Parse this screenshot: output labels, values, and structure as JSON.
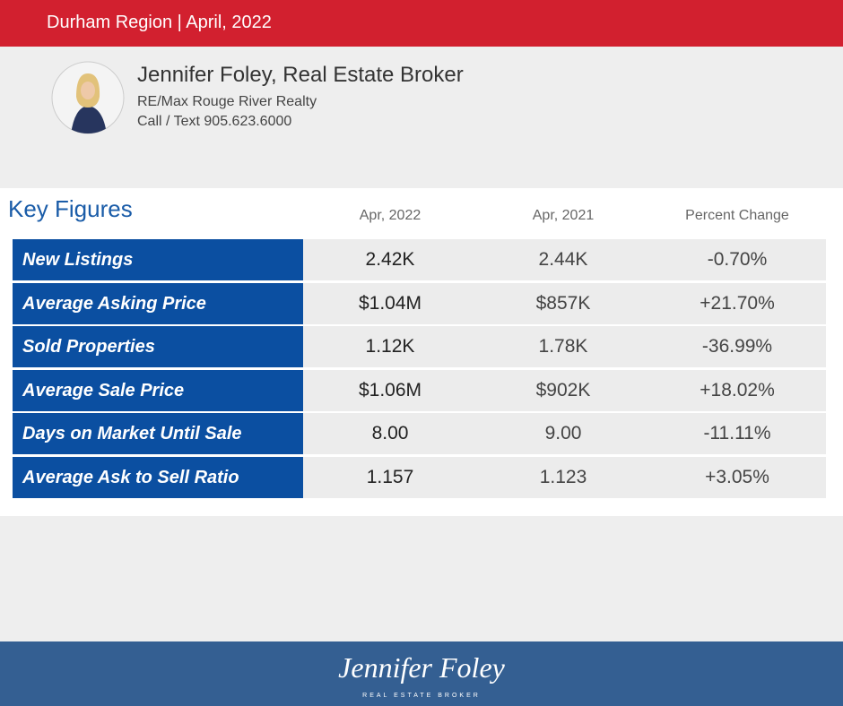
{
  "header": {
    "title": "Durham Region | April, 2022"
  },
  "agent": {
    "name": "Jennifer Foley, Real Estate Broker",
    "company": "RE/Max Rouge River Realty",
    "phone": "Call / Text 905.623.6000"
  },
  "table": {
    "title": "Key Figures",
    "columns": [
      "Apr, 2022",
      "Apr, 2021",
      "Percent Change"
    ],
    "rows": [
      [
        "New Listings",
        "2.42K",
        "2.44K",
        "-0.70%"
      ],
      [
        "Average Asking Price",
        "$1.04M",
        "$857K",
        "+21.70%"
      ],
      [
        "Sold Properties",
        "1.12K",
        "1.78K",
        "-36.99%"
      ],
      [
        "Average Sale Price",
        "$1.06M",
        "$902K",
        "+18.02%"
      ],
      [
        "Days on Market Until Sale",
        "8.00",
        "9.00",
        "-11.11%"
      ],
      [
        "Average Ask to Sell Ratio",
        "1.157",
        "1.123",
        "+3.05%"
      ]
    ]
  },
  "footer": {
    "signature": "Jennifer Foley",
    "subtitle": "REAL ESTATE BROKER"
  }
}
